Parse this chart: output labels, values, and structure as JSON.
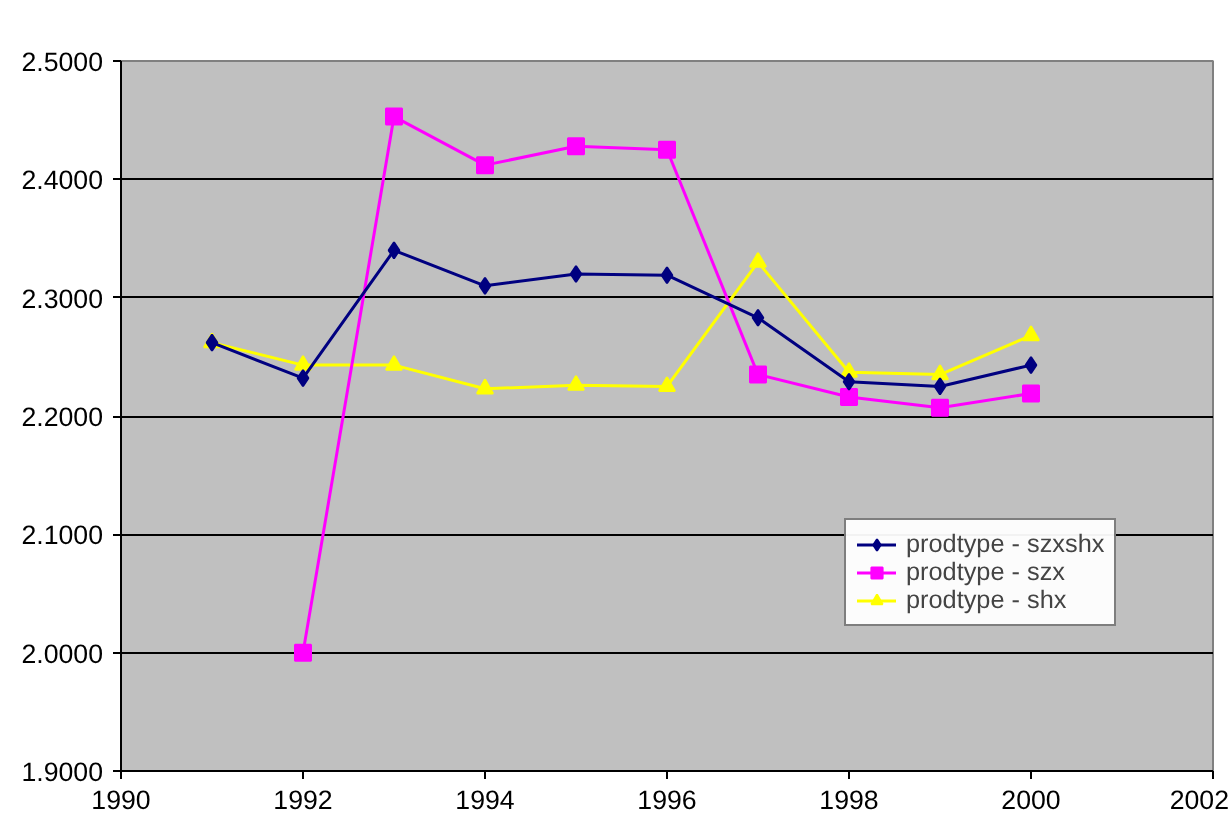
{
  "chart_data": {
    "type": "line",
    "x": [
      1991,
      1992,
      1993,
      1994,
      1995,
      1996,
      1997,
      1998,
      1999,
      2000
    ],
    "series": [
      {
        "name": "prodtype - szxshx",
        "color": "#000080",
        "marker": "diamond",
        "values": [
          2.262,
          2.232,
          2.34,
          2.31,
          2.32,
          2.319,
          2.283,
          2.229,
          2.225,
          2.243
        ]
      },
      {
        "name": "prodtype - szx",
        "color": "#ff00ff",
        "marker": "square",
        "values": [
          null,
          2.0,
          2.453,
          2.412,
          2.428,
          2.425,
          2.235,
          2.216,
          2.207,
          2.219
        ]
      },
      {
        "name": "prodtype - shx",
        "color": "#ffff00",
        "marker": "triangle",
        "values": [
          2.262,
          2.243,
          2.243,
          2.223,
          2.226,
          2.225,
          2.33,
          2.237,
          2.235,
          2.268
        ]
      }
    ],
    "xlim": [
      1990,
      2002
    ],
    "xticks": [
      1990,
      1992,
      1994,
      1996,
      1998,
      2000,
      2002
    ],
    "ylim": [
      1.9,
      2.5
    ],
    "yticks": [
      {
        "value": 1.9,
        "label": "1.9000"
      },
      {
        "value": 2.0,
        "label": "2.0000"
      },
      {
        "value": 2.1,
        "label": "2.1000"
      },
      {
        "value": 2.2,
        "label": "2.2000"
      },
      {
        "value": 2.3,
        "label": "2.3000"
      },
      {
        "value": 2.4,
        "label": "2.4000"
      },
      {
        "value": 2.5,
        "label": "2.5000"
      }
    ],
    "grid": "y",
    "legend": "right"
  }
}
